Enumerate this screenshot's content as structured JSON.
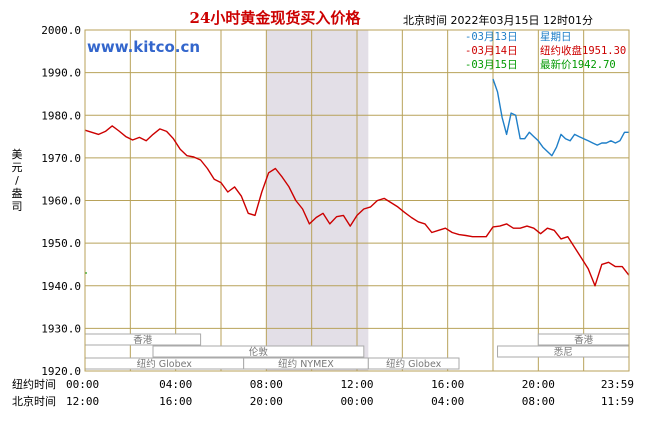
{
  "title": "24小时黄金现货买入价格",
  "header_time": "北京时间   2022年03月15日 12时01分",
  "watermark": "www.kitco.cn",
  "ylabel": "美元/盎司",
  "row_labels": [
    "纽约时间",
    "北京时间"
  ],
  "ny_ticks": [
    "00:00",
    "04:00",
    "08:00",
    "12:00",
    "16:00",
    "20:00",
    "23:59"
  ],
  "bj_ticks": [
    "12:00",
    "16:00",
    "20:00",
    "00:00",
    "04:00",
    "08:00",
    "11:59"
  ],
  "sessions": [
    {
      "label": "香港",
      "x_start": 0,
      "x_end": 5.1
    },
    {
      "label": "伦敦",
      "x_start": 3.0,
      "x_end": 12.3
    },
    {
      "label": "纽约 Globex",
      "x_start": 0,
      "x_end": 7.0
    },
    {
      "label": "纽约 NYMEX",
      "x_start": 7.0,
      "x_end": 12.5
    },
    {
      "label": "纽约 Globex",
      "x_start": 12.5,
      "x_end": 16.5
    },
    {
      "label": "香港",
      "x_start": 20.0,
      "x_end": 24
    },
    {
      "label": "悉尼",
      "x_start": 18.2,
      "x_end": 24
    }
  ],
  "legend": [
    {
      "marker": "-",
      "date": "03月13日",
      "label": "星期日",
      "value": "",
      "color": "#1f7fc8"
    },
    {
      "marker": "-",
      "date": "03月14日",
      "label": "纽约收盘",
      "value": "1951.30",
      "color": "#cc0000"
    },
    {
      "marker": "-",
      "date": "03月15日",
      "label": "最新价",
      "value": "1942.70",
      "color": "#009900"
    }
  ],
  "colors": {
    "grid": "#b8a25a",
    "shade": "#e3dfe7",
    "red": "#cc0000",
    "blue": "#1f7fc8",
    "green": "#009900"
  },
  "chart_data": {
    "type": "line",
    "xlabel": "",
    "ylabel": "美元/盎司",
    "xlim": [
      0,
      24
    ],
    "ylim": [
      1920,
      2000
    ],
    "y_ticks": [
      "1920.0",
      "1930.0",
      "1940.0",
      "1950.0",
      "1960.0",
      "1970.0",
      "1980.0",
      "1990.0",
      "2000.0"
    ],
    "shaded_x": [
      8,
      12.5
    ],
    "series": [
      {
        "name": "03月14日",
        "color": "#cc0000",
        "x": [
          0,
          0.3,
          0.6,
          0.9,
          1.2,
          1.5,
          1.8,
          2.1,
          2.4,
          2.7,
          3.0,
          3.3,
          3.6,
          3.9,
          4.2,
          4.5,
          4.8,
          5.1,
          5.4,
          5.7,
          6.0,
          6.3,
          6.6,
          6.9,
          7.2,
          7.5,
          7.8,
          8.1,
          8.4,
          8.7,
          9.0,
          9.3,
          9.6,
          9.9,
          10.2,
          10.5,
          10.8,
          11.1,
          11.4,
          11.7,
          12.0,
          12.3,
          12.6,
          12.9,
          13.2,
          13.5,
          13.8,
          14.1,
          14.4,
          14.7,
          15.0,
          15.3,
          15.6,
          15.9,
          16.2,
          16.5,
          16.8,
          17.1,
          17.4,
          17.7,
          18.0,
          18.3,
          18.6,
          18.9,
          19.2,
          19.5,
          19.8,
          20.1,
          20.4,
          20.7,
          21.0,
          21.3,
          21.6,
          21.9,
          22.2,
          22.5,
          22.8,
          23.1,
          23.4,
          23.7,
          23.99
        ],
        "y": [
          1976.5,
          1976.0,
          1975.5,
          1976.2,
          1977.5,
          1976.3,
          1975.0,
          1974.2,
          1974.8,
          1974.0,
          1975.5,
          1976.8,
          1976.2,
          1974.5,
          1972.0,
          1970.5,
          1970.2,
          1969.5,
          1967.5,
          1965.0,
          1964.2,
          1962.0,
          1963.2,
          1961.0,
          1957.0,
          1956.5,
          1962.0,
          1966.5,
          1967.5,
          1965.5,
          1963.2,
          1960.0,
          1958.0,
          1954.5,
          1956.0,
          1957.0,
          1954.5,
          1956.2,
          1956.5,
          1954.0,
          1956.5,
          1958.0,
          1958.5,
          1960.0,
          1960.5,
          1959.5,
          1958.5,
          1957.2,
          1956.0,
          1955.0,
          1954.5,
          1952.5,
          1953.0,
          1953.5,
          1952.5,
          1952.0,
          1951.8,
          1951.5,
          1951.5,
          1951.5,
          1953.8,
          1954.0,
          1954.5,
          1953.5,
          1953.5,
          1954.0,
          1953.5,
          1952.2,
          1953.5,
          1953.0,
          1951.0,
          1951.5,
          1949.0,
          1946.5,
          1944.0,
          1940.0,
          1945.0,
          1945.5,
          1944.5,
          1944.5,
          1942.5
        ]
      },
      {
        "name": "03月13日",
        "color": "#1f7fc8",
        "x": [
          18.0,
          18.2,
          18.4,
          18.6,
          18.8,
          19.0,
          19.2,
          19.4,
          19.6,
          19.8,
          20.0,
          20.2,
          20.4,
          20.6,
          20.8,
          21.0,
          21.2,
          21.4,
          21.6,
          21.8,
          22.0,
          22.2,
          22.4,
          22.6,
          22.8,
          23.0,
          23.2,
          23.4,
          23.6,
          23.8,
          23.99
        ],
        "y": [
          1988.5,
          1985.5,
          1979.5,
          1975.5,
          1980.5,
          1980.0,
          1974.5,
          1974.5,
          1976.0,
          1975.0,
          1974.0,
          1972.5,
          1971.5,
          1970.5,
          1972.5,
          1975.5,
          1974.5,
          1974.0,
          1975.5,
          1975.0,
          1974.5,
          1974.0,
          1973.5,
          1973.0,
          1973.5,
          1973.5,
          1974.0,
          1973.5,
          1974.0,
          1976.0,
          1976.0
        ]
      },
      {
        "name": "03月15日",
        "color": "#009900",
        "x": [
          0,
          0.08
        ],
        "y": [
          1943.0,
          1943.0
        ]
      }
    ]
  }
}
